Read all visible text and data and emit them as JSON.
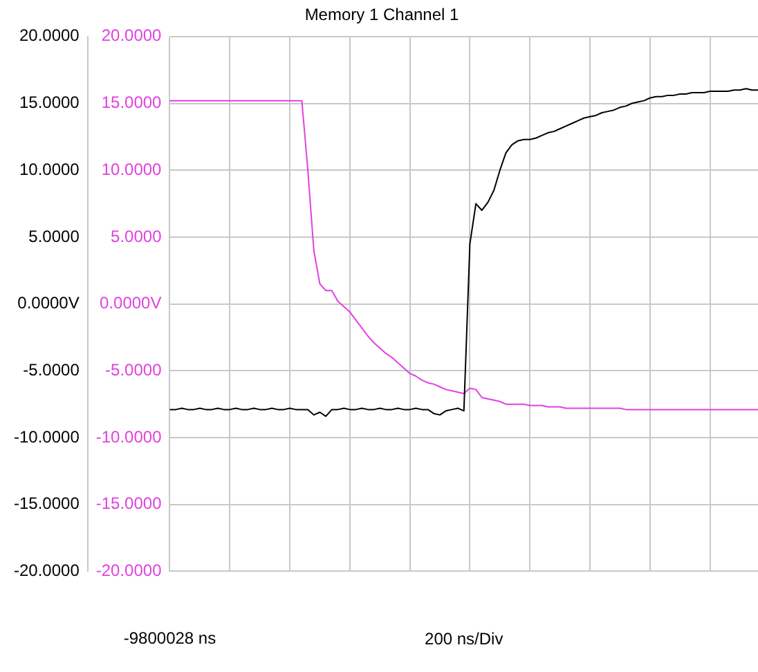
{
  "chart_data": {
    "type": "line",
    "title": "Memory 1 Channel 1",
    "xlabel": "200 ns/Div",
    "annotations": [
      "-9800028 ns"
    ],
    "categories": [
      null,
      null,
      null,
      null,
      null,
      null,
      null,
      null,
      null,
      null,
      null,
      null,
      null,
      null,
      null,
      null,
      null,
      null,
      null,
      null,
      null,
      null,
      null,
      null,
      null,
      null,
      null,
      null,
      null,
      null,
      null,
      null,
      null,
      null,
      null,
      null,
      null,
      null,
      null,
      null,
      null,
      null,
      null,
      null,
      null,
      null,
      null,
      null,
      null,
      null,
      null,
      null,
      null,
      null,
      null,
      null,
      null,
      null,
      null,
      null,
      null,
      null,
      null,
      null,
      null,
      null,
      null,
      null,
      null,
      null,
      null,
      null,
      null,
      null,
      null,
      null,
      null,
      null,
      null,
      null,
      null,
      null,
      null,
      null,
      null,
      null,
      null,
      null,
      null,
      null,
      null,
      null,
      null,
      null,
      null,
      null,
      null,
      null,
      null
    ],
    "ylim": [
      -20,
      20
    ],
    "yticks": [
      {
        "value": -20,
        "label": "-20.0000"
      },
      {
        "value": -15,
        "label": "-15.0000"
      },
      {
        "value": -10,
        "label": "-10.0000"
      },
      {
        "value": -5,
        "label": "-5.0000"
      },
      {
        "value": 0,
        "label": "0.0000V"
      },
      {
        "value": 5,
        "label": "5.0000"
      },
      {
        "value": 10,
        "label": "10.0000"
      },
      {
        "value": 15,
        "label": "15.0000"
      },
      {
        "value": 20,
        "label": "20.0000"
      }
    ],
    "y2lim": [
      -20,
      20
    ],
    "y2ticks": [
      {
        "value": -20,
        "label": "-20.0000"
      },
      {
        "value": -15,
        "label": "-15.0000"
      },
      {
        "value": -10,
        "label": "-10.0000"
      },
      {
        "value": -5,
        "label": "-5.0000"
      },
      {
        "value": 0,
        "label": "0.0000V"
      },
      {
        "value": 5,
        "label": "5.0000"
      },
      {
        "value": 10,
        "label": "10.0000"
      },
      {
        "value": 15,
        "label": "15.0000"
      },
      {
        "value": 20,
        "label": "20.0000"
      }
    ],
    "grid": true,
    "legend": false,
    "marker": "none",
    "line_style": "solid",
    "series": [
      {
        "color": "#000000",
        "axis": "y",
        "values": [
          -7.9,
          -7.9,
          -7.8,
          -7.9,
          -7.9,
          -7.8,
          -7.9,
          -7.9,
          -7.8,
          -7.9,
          -7.9,
          -7.8,
          -7.9,
          -7.9,
          -7.8,
          -7.9,
          -7.9,
          -7.8,
          -7.9,
          -7.9,
          -7.8,
          -7.9,
          -7.9,
          -7.9,
          -8.3,
          -8.1,
          -8.4,
          -7.9,
          -7.9,
          -7.8,
          -7.9,
          -7.9,
          -7.8,
          -7.9,
          -7.9,
          -7.8,
          -7.9,
          -7.9,
          -7.8,
          -7.9,
          -7.9,
          -7.8,
          -7.9,
          -7.9,
          -8.2,
          -8.3,
          -8.0,
          -7.9,
          -7.8,
          -8.0,
          4.5,
          7.5,
          7.0,
          7.6,
          8.5,
          10.0,
          11.3,
          11.9,
          12.2,
          12.3,
          12.3,
          12.4,
          12.6,
          12.8,
          12.9,
          13.1,
          13.3,
          13.5,
          13.7,
          13.9,
          14.0,
          14.1,
          14.3,
          14.4,
          14.5,
          14.7,
          14.8,
          15.0,
          15.1,
          15.2,
          15.4,
          15.5,
          15.5,
          15.6,
          15.6,
          15.7,
          15.7,
          15.8,
          15.8,
          15.8,
          15.9,
          15.9,
          15.9,
          15.9,
          16.0,
          16.0,
          16.1,
          16.0,
          16.0
        ]
      },
      {
        "color": "#e040e0",
        "axis": "y2",
        "values": [
          15.2,
          15.2,
          15.2,
          15.2,
          15.2,
          15.2,
          15.2,
          15.2,
          15.2,
          15.2,
          15.2,
          15.2,
          15.2,
          15.2,
          15.2,
          15.2,
          15.2,
          15.2,
          15.2,
          15.2,
          15.2,
          15.2,
          15.2,
          10,
          4,
          1.5,
          1.0,
          1.0,
          0.2,
          -0.2,
          -0.6,
          -1.2,
          -1.8,
          -2.4,
          -2.9,
          -3.3,
          -3.7,
          -4.0,
          -4.4,
          -4.8,
          -5.2,
          -5.4,
          -5.7,
          -5.9,
          -6.0,
          -6.2,
          -6.4,
          -6.5,
          -6.6,
          -6.7,
          -6.3,
          -6.4,
          -7.0,
          -7.1,
          -7.2,
          -7.3,
          -7.5,
          -7.5,
          -7.5,
          -7.5,
          -7.6,
          -7.6,
          -7.6,
          -7.7,
          -7.7,
          -7.7,
          -7.8,
          -7.8,
          -7.8,
          -7.8,
          -7.8,
          -7.8,
          -7.8,
          -7.8,
          -7.8,
          -7.8,
          -7.9,
          -7.9,
          -7.9,
          -7.9,
          -7.9,
          -7.9,
          -7.9,
          -7.9,
          -7.9,
          -7.9,
          -7.9,
          -7.9,
          -7.9,
          -7.9,
          -7.9,
          -7.9,
          -7.9,
          -7.9,
          -7.9,
          -7.9,
          -7.9,
          -7.9,
          -7.9
        ]
      }
    ]
  }
}
